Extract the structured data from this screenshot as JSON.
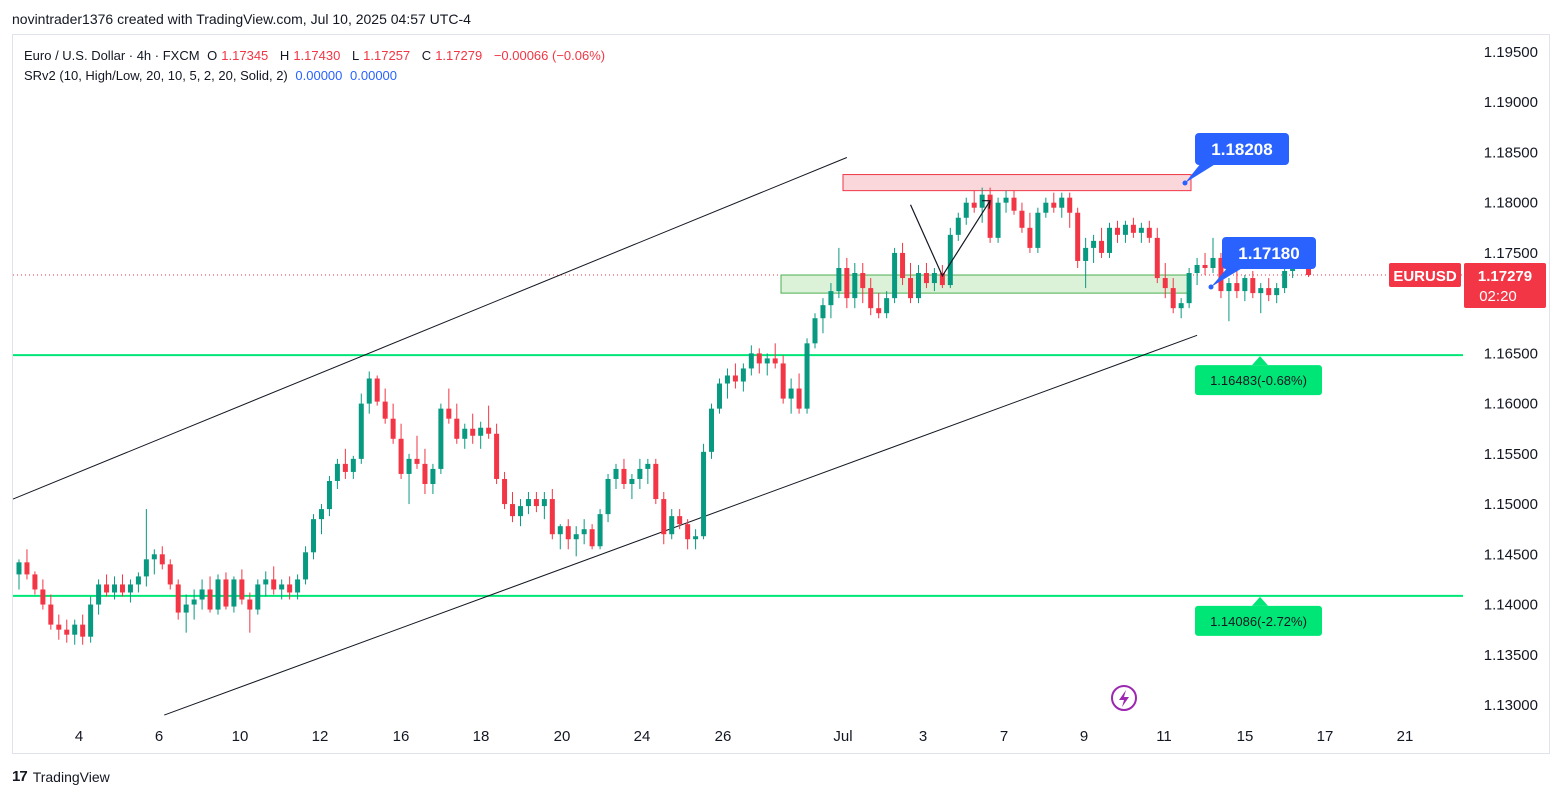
{
  "header": {
    "credit": "novintrader1376 created with TradingView.com, Jul 10, 2025 04:57 UTC-4"
  },
  "legend": {
    "symbol": "Euro / U.S. Dollar · 4h · FXCM",
    "o_label": "O",
    "o": "1.17345",
    "h_label": "H",
    "h": "1.17430",
    "l_label": "L",
    "l": "1.17257",
    "c_label": "C",
    "c": "1.17279",
    "change": "−0.00066 (−0.06%)",
    "indicator": "SRv2 (10, High/Low, 20, 10, 5, 2, 20, Solid, 2)",
    "ind_v1": "0.00000",
    "ind_v2": "0.00000"
  },
  "footer": {
    "brand": "TradingView",
    "logo_text": "17"
  },
  "colors": {
    "up": "#089981",
    "down": "#f23645",
    "green_line": "#00e676",
    "blue_label": "#2962ff",
    "resistance_fill": "#f8d0d4",
    "support_fill": "#d5f0d2"
  },
  "chart_data": {
    "type": "candlestick",
    "symbol": "EURUSD",
    "timeframe": "4h",
    "ylim": [
      1.127,
      1.197
    ],
    "y_ticks": [
      "1.19500",
      "1.19000",
      "1.18500",
      "1.18000",
      "1.17500",
      "1.17000",
      "1.16500",
      "1.16000",
      "1.15500",
      "1.15000",
      "1.14500",
      "1.14000",
      "1.13500",
      "1.13000"
    ],
    "x_ticks": [
      "4",
      "6",
      "10",
      "12",
      "16",
      "18",
      "20",
      "24",
      "26",
      "Jul",
      "3",
      "7",
      "9",
      "11",
      "15",
      "17",
      "21"
    ],
    "last_price": {
      "symbol": "EURUSD",
      "value": "1.17279",
      "countdown": "02:20"
    },
    "levels": [
      {
        "label": "1.16483(-0.68%)",
        "value": 1.16483
      },
      {
        "label": "1.14086(-2.72%)",
        "value": 1.14086
      }
    ],
    "zones": [
      {
        "kind": "resistance",
        "from": 1.1812,
        "to": 1.1828
      },
      {
        "kind": "support",
        "from": 1.171,
        "to": 1.1728
      }
    ],
    "callouts": [
      {
        "label": "1.18208",
        "value": 1.18208
      },
      {
        "label": "1.17180",
        "value": 1.1718
      }
    ],
    "channel": {
      "upper": [
        [
          0,
          1.1505
        ],
        [
          104,
          1.1845
        ]
      ],
      "lower": [
        [
          19,
          1.129
        ],
        [
          148,
          1.1668
        ]
      ]
    },
    "zigzag": [
      [
        112,
        1.1798
      ],
      [
        116,
        1.1757
      ],
      [
        122,
        1.1802
      ]
    ],
    "candles": [
      [
        1.143,
        1.1445,
        1.1415,
        1.1442
      ],
      [
        1.1442,
        1.1455,
        1.1425,
        1.143
      ],
      [
        1.143,
        1.1433,
        1.141,
        1.1415
      ],
      [
        1.1415,
        1.1425,
        1.1395,
        1.14
      ],
      [
        1.14,
        1.141,
        1.1375,
        1.138
      ],
      [
        1.138,
        1.139,
        1.1365,
        1.1375
      ],
      [
        1.1375,
        1.1385,
        1.1362,
        1.137
      ],
      [
        1.137,
        1.1385,
        1.136,
        1.138
      ],
      [
        1.138,
        1.139,
        1.136,
        1.1368
      ],
      [
        1.1368,
        1.1408,
        1.1362,
        1.14
      ],
      [
        1.14,
        1.1425,
        1.139,
        1.142
      ],
      [
        1.142,
        1.143,
        1.1408,
        1.1412
      ],
      [
        1.1412,
        1.1428,
        1.1405,
        1.142
      ],
      [
        1.142,
        1.143,
        1.1408,
        1.1412
      ],
      [
        1.1412,
        1.1425,
        1.1402,
        1.142
      ],
      [
        1.142,
        1.1432,
        1.1412,
        1.1428
      ],
      [
        1.1428,
        1.1495,
        1.1418,
        1.1445
      ],
      [
        1.1445,
        1.1455,
        1.143,
        1.145
      ],
      [
        1.145,
        1.1458,
        1.1435,
        1.144
      ],
      [
        1.144,
        1.1445,
        1.1415,
        1.142
      ],
      [
        1.142,
        1.1425,
        1.1385,
        1.1392
      ],
      [
        1.1392,
        1.141,
        1.1372,
        1.14
      ],
      [
        1.14,
        1.1415,
        1.1385,
        1.1405
      ],
      [
        1.1405,
        1.1425,
        1.1395,
        1.1415
      ],
      [
        1.1415,
        1.1428,
        1.1392,
        1.1395
      ],
      [
        1.1395,
        1.143,
        1.139,
        1.1425
      ],
      [
        1.1425,
        1.1432,
        1.1395,
        1.1398
      ],
      [
        1.1398,
        1.1428,
        1.1392,
        1.1425
      ],
      [
        1.1425,
        1.1435,
        1.14,
        1.1405
      ],
      [
        1.1405,
        1.1412,
        1.1372,
        1.1395
      ],
      [
        1.1395,
        1.1425,
        1.139,
        1.142
      ],
      [
        1.142,
        1.1433,
        1.1408,
        1.1425
      ],
      [
        1.1425,
        1.1438,
        1.141,
        1.1415
      ],
      [
        1.1415,
        1.1425,
        1.1405,
        1.142
      ],
      [
        1.142,
        1.1428,
        1.1405,
        1.1412
      ],
      [
        1.1412,
        1.143,
        1.1405,
        1.1425
      ],
      [
        1.1425,
        1.1458,
        1.142,
        1.1452
      ],
      [
        1.1452,
        1.149,
        1.1445,
        1.1485
      ],
      [
        1.1485,
        1.15,
        1.147,
        1.1495
      ],
      [
        1.1495,
        1.1528,
        1.1488,
        1.1523
      ],
      [
        1.1523,
        1.1545,
        1.1515,
        1.154
      ],
      [
        1.154,
        1.1555,
        1.1525,
        1.1532
      ],
      [
        1.1532,
        1.1548,
        1.1525,
        1.1545
      ],
      [
        1.1545,
        1.161,
        1.154,
        1.16
      ],
      [
        1.16,
        1.1632,
        1.159,
        1.1625
      ],
      [
        1.1625,
        1.1628,
        1.1598,
        1.1602
      ],
      [
        1.1602,
        1.1615,
        1.158,
        1.1585
      ],
      [
        1.1585,
        1.16,
        1.156,
        1.1565
      ],
      [
        1.1565,
        1.158,
        1.1525,
        1.153
      ],
      [
        1.153,
        1.155,
        1.15,
        1.1545
      ],
      [
        1.1545,
        1.1568,
        1.1535,
        1.154
      ],
      [
        1.154,
        1.1555,
        1.151,
        1.152
      ],
      [
        1.152,
        1.154,
        1.151,
        1.1535
      ],
      [
        1.1535,
        1.16,
        1.153,
        1.1595
      ],
      [
        1.1595,
        1.1615,
        1.158,
        1.1585
      ],
      [
        1.1585,
        1.16,
        1.156,
        1.1565
      ],
      [
        1.1565,
        1.158,
        1.1555,
        1.1575
      ],
      [
        1.1575,
        1.159,
        1.156,
        1.1568
      ],
      [
        1.1568,
        1.1582,
        1.1555,
        1.1576
      ],
      [
        1.1576,
        1.1598,
        1.1565,
        1.157
      ],
      [
        1.157,
        1.158,
        1.152,
        1.1525
      ],
      [
        1.1525,
        1.1532,
        1.1495,
        1.15
      ],
      [
        1.15,
        1.1512,
        1.1482,
        1.1488
      ],
      [
        1.1488,
        1.1505,
        1.1478,
        1.1498
      ],
      [
        1.1498,
        1.1512,
        1.149,
        1.1505
      ],
      [
        1.1505,
        1.1512,
        1.1492,
        1.1498
      ],
      [
        1.1498,
        1.1512,
        1.1485,
        1.1505
      ],
      [
        1.1505,
        1.1515,
        1.1465,
        1.147
      ],
      [
        1.147,
        1.148,
        1.1455,
        1.1478
      ],
      [
        1.1478,
        1.1485,
        1.1455,
        1.1465
      ],
      [
        1.1465,
        1.1478,
        1.1448,
        1.147
      ],
      [
        1.147,
        1.1485,
        1.146,
        1.1475
      ],
      [
        1.1475,
        1.148,
        1.1455,
        1.1458
      ],
      [
        1.1458,
        1.1495,
        1.1455,
        1.149
      ],
      [
        1.149,
        1.153,
        1.1482,
        1.1525
      ],
      [
        1.1525,
        1.154,
        1.1515,
        1.1535
      ],
      [
        1.1535,
        1.1545,
        1.1515,
        1.152
      ],
      [
        1.152,
        1.153,
        1.1505,
        1.1525
      ],
      [
        1.1525,
        1.1545,
        1.1515,
        1.1535
      ],
      [
        1.1535,
        1.1545,
        1.152,
        1.154
      ],
      [
        1.154,
        1.1545,
        1.15,
        1.1505
      ],
      [
        1.1505,
        1.1512,
        1.146,
        1.147
      ],
      [
        1.147,
        1.1495,
        1.1465,
        1.1488
      ],
      [
        1.1488,
        1.1495,
        1.1475,
        1.148
      ],
      [
        1.148,
        1.1485,
        1.1455,
        1.1465
      ],
      [
        1.1465,
        1.1475,
        1.1455,
        1.1468
      ],
      [
        1.1468,
        1.156,
        1.1465,
        1.1552
      ],
      [
        1.1552,
        1.16,
        1.1545,
        1.1595
      ],
      [
        1.1595,
        1.1625,
        1.159,
        1.162
      ],
      [
        1.162,
        1.1635,
        1.1605,
        1.1628
      ],
      [
        1.1628,
        1.164,
        1.1615,
        1.1622
      ],
      [
        1.1622,
        1.164,
        1.1612,
        1.1635
      ],
      [
        1.1635,
        1.1658,
        1.1628,
        1.165
      ],
      [
        1.165,
        1.1655,
        1.163,
        1.164
      ],
      [
        1.164,
        1.165,
        1.1628,
        1.1645
      ],
      [
        1.1645,
        1.166,
        1.1635,
        1.164
      ],
      [
        1.164,
        1.1648,
        1.16,
        1.1605
      ],
      [
        1.1605,
        1.1625,
        1.159,
        1.1615
      ],
      [
        1.1615,
        1.163,
        1.159,
        1.1595
      ],
      [
        1.1595,
        1.1665,
        1.159,
        1.166
      ],
      [
        1.166,
        1.169,
        1.1655,
        1.1685
      ],
      [
        1.1685,
        1.1705,
        1.167,
        1.1698
      ],
      [
        1.1698,
        1.172,
        1.1685,
        1.1712
      ],
      [
        1.1712,
        1.1755,
        1.1705,
        1.1735
      ],
      [
        1.1735,
        1.1745,
        1.1695,
        1.1705
      ],
      [
        1.1705,
        1.174,
        1.1695,
        1.173
      ],
      [
        1.173,
        1.174,
        1.17,
        1.1715
      ],
      [
        1.1715,
        1.1725,
        1.1688,
        1.1695
      ],
      [
        1.1695,
        1.171,
        1.1685,
        1.169
      ],
      [
        1.169,
        1.1712,
        1.1685,
        1.1705
      ],
      [
        1.1705,
        1.1755,
        1.17,
        1.175
      ],
      [
        1.175,
        1.176,
        1.1718,
        1.1725
      ],
      [
        1.1725,
        1.174,
        1.17,
        1.1705
      ],
      [
        1.1705,
        1.1738,
        1.17,
        1.173
      ],
      [
        1.173,
        1.174,
        1.1715,
        1.172
      ],
      [
        1.172,
        1.1735,
        1.1712,
        1.173
      ],
      [
        1.173,
        1.1738,
        1.1715,
        1.1718
      ],
      [
        1.1718,
        1.1775,
        1.1715,
        1.1768
      ],
      [
        1.1768,
        1.179,
        1.1762,
        1.1785
      ],
      [
        1.1785,
        1.1805,
        1.1778,
        1.18
      ],
      [
        1.18,
        1.1812,
        1.179,
        1.1795
      ],
      [
        1.1795,
        1.1815,
        1.178,
        1.1808
      ],
      [
        1.1808,
        1.1815,
        1.176,
        1.1765
      ],
      [
        1.1765,
        1.1805,
        1.176,
        1.18
      ],
      [
        1.18,
        1.1812,
        1.179,
        1.1805
      ],
      [
        1.1805,
        1.1812,
        1.1788,
        1.1792
      ],
      [
        1.1792,
        1.18,
        1.177,
        1.1775
      ],
      [
        1.1775,
        1.179,
        1.175,
        1.1755
      ],
      [
        1.1755,
        1.1795,
        1.175,
        1.179
      ],
      [
        1.179,
        1.1805,
        1.1785,
        1.18
      ],
      [
        1.18,
        1.181,
        1.179,
        1.1795
      ],
      [
        1.1795,
        1.181,
        1.1785,
        1.1805
      ],
      [
        1.1805,
        1.181,
        1.1775,
        1.179
      ],
      [
        1.179,
        1.1795,
        1.1735,
        1.1742
      ],
      [
        1.1742,
        1.1765,
        1.1715,
        1.1755
      ],
      [
        1.1755,
        1.1768,
        1.174,
        1.1762
      ],
      [
        1.1762,
        1.1775,
        1.1745,
        1.175
      ],
      [
        1.175,
        1.178,
        1.1745,
        1.1775
      ],
      [
        1.1775,
        1.1782,
        1.176,
        1.1768
      ],
      [
        1.1768,
        1.1782,
        1.176,
        1.1778
      ],
      [
        1.1778,
        1.1785,
        1.1765,
        1.177
      ],
      [
        1.177,
        1.178,
        1.176,
        1.1775
      ],
      [
        1.1775,
        1.1782,
        1.176,
        1.1765
      ],
      [
        1.1765,
        1.1775,
        1.172,
        1.1725
      ],
      [
        1.1725,
        1.174,
        1.1705,
        1.1715
      ],
      [
        1.1715,
        1.1725,
        1.169,
        1.1695
      ],
      [
        1.1695,
        1.1705,
        1.1685,
        1.17
      ],
      [
        1.17,
        1.1735,
        1.1695,
        1.173
      ],
      [
        1.173,
        1.1745,
        1.1718,
        1.1738
      ],
      [
        1.1738,
        1.175,
        1.1728,
        1.1735
      ],
      [
        1.1735,
        1.1765,
        1.173,
        1.1745
      ],
      [
        1.1745,
        1.175,
        1.1705,
        1.1712
      ],
      [
        1.1712,
        1.1725,
        1.1682,
        1.172
      ],
      [
        1.172,
        1.1732,
        1.1705,
        1.1712
      ],
      [
        1.1712,
        1.1728,
        1.1702,
        1.1725
      ],
      [
        1.1725,
        1.1732,
        1.1705,
        1.171
      ],
      [
        1.171,
        1.172,
        1.169,
        1.1715
      ],
      [
        1.1715,
        1.1725,
        1.1702,
        1.1708
      ],
      [
        1.1708,
        1.172,
        1.17,
        1.1715
      ],
      [
        1.1715,
        1.1738,
        1.171,
        1.1732
      ],
      [
        1.1732,
        1.1752,
        1.1725,
        1.1745
      ],
      [
        1.1745,
        1.1748,
        1.1735,
        1.1738
      ],
      [
        1.1734,
        1.1743,
        1.1726,
        1.1728
      ]
    ]
  }
}
